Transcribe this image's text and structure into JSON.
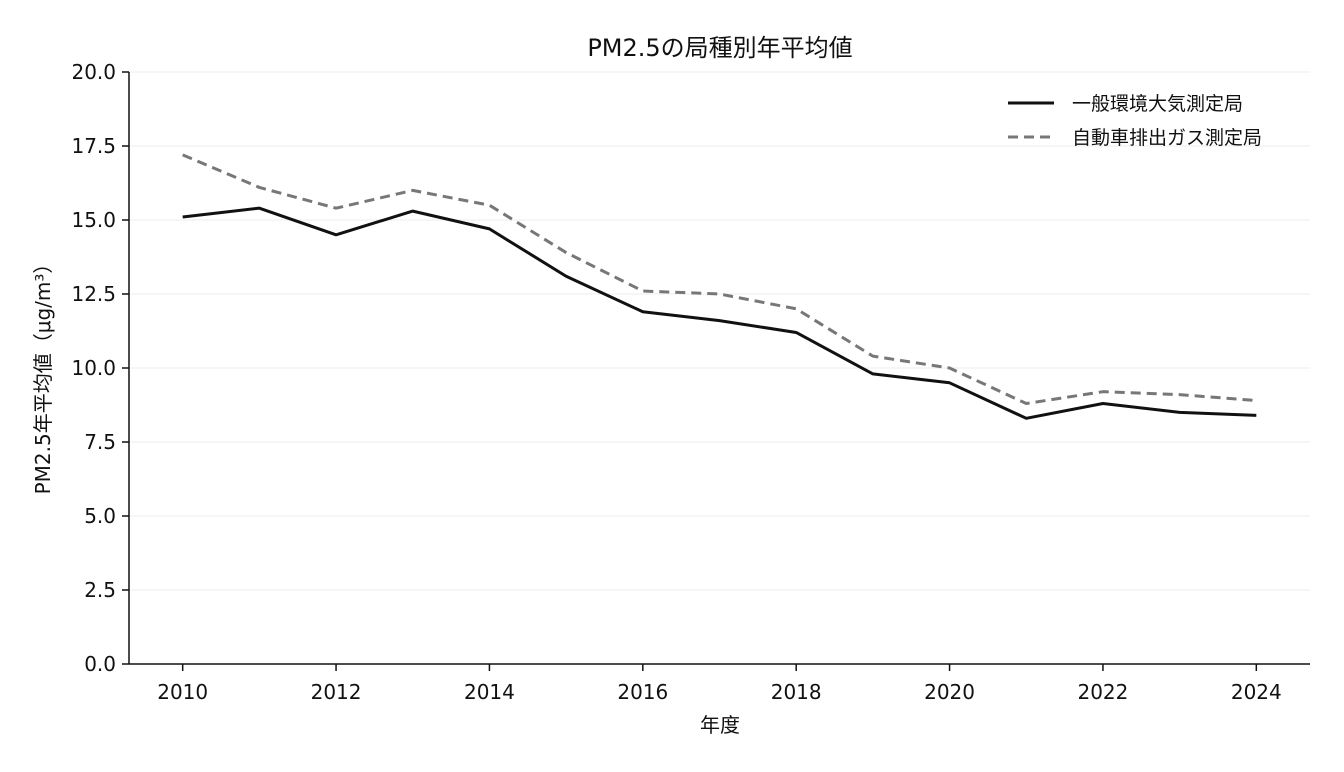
{
  "chart_data": {
    "type": "line",
    "title": "PM2.5の局種別年平均値",
    "xlabel": "年度",
    "ylabel": "PM2.5年平均値（μg/m³）",
    "x": [
      2010,
      2011,
      2012,
      2013,
      2014,
      2015,
      2016,
      2017,
      2018,
      2019,
      2020,
      2021,
      2022,
      2023,
      2024
    ],
    "x_ticks": [
      "2010",
      "2012",
      "2014",
      "2016",
      "2018",
      "2020",
      "2022",
      "2024"
    ],
    "x_tick_values": [
      2010,
      2012,
      2014,
      2016,
      2018,
      2020,
      2022,
      2024
    ],
    "xlim": [
      2009.3,
      2024.7
    ],
    "ylim": [
      0,
      20
    ],
    "y_ticks": [
      "0.0",
      "2.5",
      "5.0",
      "7.5",
      "10.0",
      "12.5",
      "15.0",
      "17.5",
      "20.0"
    ],
    "y_tick_values": [
      0,
      2.5,
      5,
      7.5,
      10,
      12.5,
      15,
      17.5,
      20
    ],
    "grid": "horizontal",
    "legend_position": "top-right",
    "series": [
      {
        "name": "一般環境大気測定局",
        "style": "solid",
        "color": "#111111",
        "values": [
          15.1,
          15.4,
          14.5,
          15.3,
          14.7,
          13.1,
          11.9,
          11.6,
          11.2,
          9.8,
          9.5,
          8.3,
          8.8,
          8.5,
          8.4
        ]
      },
      {
        "name": "自動車排出ガス測定局",
        "style": "dashed",
        "color": "#777777",
        "values": [
          17.2,
          16.1,
          15.4,
          16.0,
          15.5,
          13.9,
          12.6,
          12.5,
          12.0,
          10.4,
          10.0,
          8.8,
          9.2,
          9.1,
          8.9
        ]
      }
    ]
  }
}
